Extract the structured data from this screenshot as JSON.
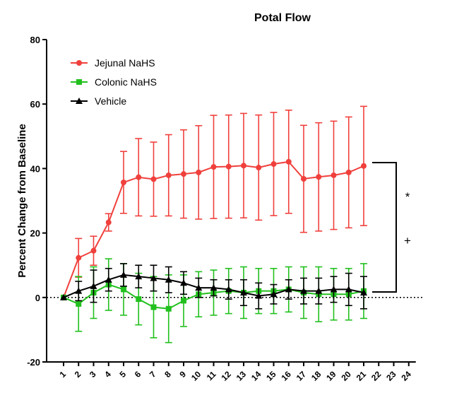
{
  "chart_data": {
    "type": "line",
    "title": "Potal Flow",
    "y_label": "Percent  Change from  Baseline",
    "categories": [
      "1",
      "2",
      "3",
      "4",
      "5",
      "6",
      "7",
      "8",
      "9",
      "10",
      "11",
      "12",
      "13",
      "14",
      "15",
      "16",
      "17",
      "18",
      "19",
      "20",
      "21",
      "22",
      "23",
      "24"
    ],
    "series": [
      {
        "name": "Jejunal NaHS",
        "color": "#f0403c",
        "marker": "circle",
        "values": [
          0,
          12.3,
          14.5,
          23.3,
          35.7,
          37.3,
          36.7,
          37.9,
          38.3,
          38.8,
          40.5,
          40.6,
          40.9,
          40.3,
          41.4,
          42.1,
          36.8,
          37.4,
          37.9,
          38.8,
          40.8,
          null,
          null,
          null
        ],
        "errors": [
          0,
          6,
          4.5,
          2.7,
          9.6,
          12,
          11.5,
          12.6,
          13.7,
          14.5,
          16,
          16,
          16.2,
          16.3,
          16,
          16,
          16.6,
          16.8,
          16.8,
          17.2,
          18.5,
          null,
          null,
          null
        ]
      },
      {
        "name": "Colonic NaHS",
        "color": "#22c01e",
        "marker": "square",
        "values": [
          0,
          -2,
          1.5,
          4,
          2.5,
          -0.5,
          -3,
          -3.5,
          -1,
          1,
          1.5,
          2,
          1.5,
          2,
          2,
          2.5,
          1.5,
          1,
          1,
          1,
          2,
          null,
          null,
          null
        ],
        "errors": [
          0,
          8.5,
          8,
          8,
          8,
          8,
          9.5,
          10.5,
          8,
          7,
          7,
          7,
          8,
          7,
          7,
          7,
          8,
          8.5,
          8,
          8,
          8.5,
          null,
          null,
          null
        ]
      },
      {
        "name": "Vehicle",
        "color": "#000000",
        "marker": "triangle",
        "values": [
          0,
          2,
          3.5,
          5.5,
          7,
          6.5,
          6,
          5.5,
          4.5,
          3,
          3,
          2.5,
          1.5,
          0.5,
          1,
          2.5,
          2,
          2,
          2.5,
          2.5,
          1.5,
          null,
          null,
          null
        ],
        "errors": [
          0,
          3,
          5,
          3.5,
          3.5,
          3.5,
          4,
          4,
          3.5,
          3,
          2.5,
          3,
          4,
          4,
          3,
          3,
          4,
          4,
          4,
          5,
          5,
          null,
          null,
          null
        ]
      }
    ],
    "ylim": [
      -20,
      80
    ],
    "yticks": [
      -20,
      0,
      20,
      40,
      60,
      80
    ],
    "annotations": [
      "*",
      "+"
    ],
    "legend": "upper left"
  }
}
